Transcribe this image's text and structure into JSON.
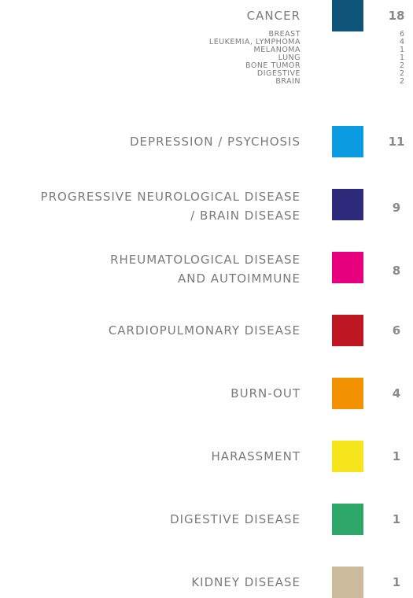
{
  "items": [
    {
      "label": [
        "CANCER"
      ],
      "color": "#0f5579",
      "count": "18",
      "details": [
        {
          "label": "BREAST",
          "count": "6"
        },
        {
          "label": "LEUKEMIA, LYMPHOMA",
          "count": "4"
        },
        {
          "label": "MELANOMA",
          "count": "1"
        },
        {
          "label": "LUNG",
          "count": "1"
        },
        {
          "label": "BONE TUMOR",
          "count": "2"
        },
        {
          "label": "DIGESTIVE",
          "count": "2"
        },
        {
          "label": "BRAIN",
          "count": "2"
        }
      ]
    },
    {
      "label": [
        "DEPRESSION / PSYCHOSIS"
      ],
      "color": "#0a9be0",
      "count": "11"
    },
    {
      "label": [
        "PROGRESSIVE NEUROLOGICAL DISEASE",
        "/ BRAIN DISEASE"
      ],
      "color": "#2e2a7c",
      "count": "9"
    },
    {
      "label": [
        "RHEUMATOLOGICAL DISEASE",
        "AND AUTOIMMUNE"
      ],
      "color": "#e6007e",
      "count": "8"
    },
    {
      "label": [
        "CARDIOPULMONARY DISEASE"
      ],
      "color": "#be1622",
      "count": "6"
    },
    {
      "label": [
        "BURN-OUT"
      ],
      "color": "#f39200",
      "count": "4"
    },
    {
      "label": [
        "HARASSMENT"
      ],
      "color": "#f7e51b",
      "count": "1"
    },
    {
      "label": [
        "DIGESTIVE DISEASE"
      ],
      "color": "#2ea86a",
      "count": "1"
    },
    {
      "label": [
        "KIDNEY DISEASE"
      ],
      "color": "#cbbb9c",
      "count": "1"
    }
  ]
}
